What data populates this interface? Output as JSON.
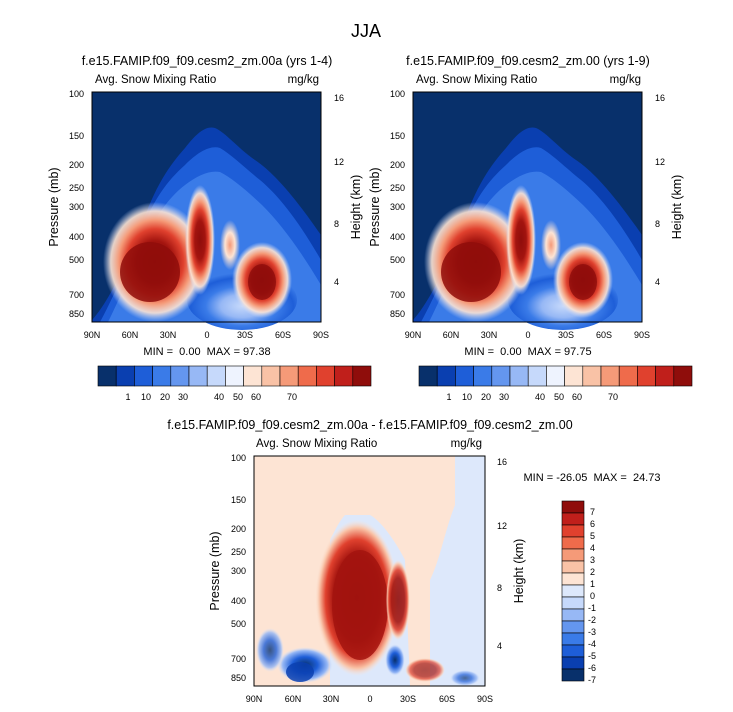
{
  "figure": {
    "title": "JJA"
  },
  "colors": {
    "field_scale": [
      "#08306b",
      "#0a3fb0",
      "#1e5ed8",
      "#3a7be8",
      "#6496ef",
      "#97b8f5",
      "#c6d9fb",
      "#eef3fe",
      "#fde4d4",
      "#f9c2a6",
      "#f59a78",
      "#ef6b4b",
      "#e0412e",
      "#c01f1b",
      "#8f0d0b"
    ],
    "diff_scale": [
      "#08306b",
      "#0a3fb0",
      "#1e5ed8",
      "#3a7be8",
      "#6496ef",
      "#97b8f5",
      "#c6d9fb",
      "#dde8fb",
      "#fde4d4",
      "#f9c2a6",
      "#f59a78",
      "#ef6b4b",
      "#e0412e",
      "#c01f1b",
      "#8f0d0b"
    ]
  },
  "chart_data": [
    {
      "type": "heatmap",
      "title": "f.e15.FAMIP.f09_f09.cesm2_zm.00a (yrs 1-4)",
      "subtitle_left": "Avg. Snow Mixing Ratio",
      "subtitle_right": "mg/kg",
      "xlabel": "",
      "ylabel": "Pressure (mb)",
      "ylabel_right": "Height (km)",
      "x_ticks": [
        "90N",
        "60N",
        "30N",
        "0",
        "30S",
        "60S",
        "90S"
      ],
      "y_ticks": [
        100,
        150,
        200,
        250,
        300,
        400,
        500,
        700,
        850
      ],
      "y_right_ticks": [
        16,
        12,
        8,
        4
      ],
      "y_scale": "log",
      "ylim": [
        900,
        100
      ],
      "xlim": [
        90,
        -90
      ],
      "stats": "MIN =  0.00  MAX = 97.38",
      "colorbar_ticks": [
        "1",
        "10",
        "20",
        "30",
        "40",
        "50",
        "60",
        "70"
      ],
      "features": [
        {
          "name": "northern mid-latitude maximum",
          "lat": 45,
          "pressure": 550,
          "value": 80
        },
        {
          "name": "southern mid-latitude maximum",
          "lat": -45,
          "pressure": 600,
          "value": 75
        },
        {
          "name": "tropical column",
          "lat": 12,
          "pressure": 350,
          "value": 45
        }
      ]
    },
    {
      "type": "heatmap",
      "title": "f.e15.FAMIP.f09_f09.cesm2_zm.00 (yrs 1-9)",
      "subtitle_left": "Avg. Snow Mixing Ratio",
      "subtitle_right": "mg/kg",
      "xlabel": "",
      "ylabel": "Pressure (mb)",
      "ylabel_right": "Height (km)",
      "x_ticks": [
        "90N",
        "60N",
        "30N",
        "0",
        "30S",
        "60S",
        "90S"
      ],
      "y_ticks": [
        100,
        150,
        200,
        250,
        300,
        400,
        500,
        700,
        850
      ],
      "y_right_ticks": [
        16,
        12,
        8,
        4
      ],
      "y_scale": "log",
      "ylim": [
        900,
        100
      ],
      "xlim": [
        90,
        -90
      ],
      "stats": "MIN =  0.00  MAX = 97.75",
      "colorbar_ticks": [
        "1",
        "10",
        "20",
        "30",
        "40",
        "50",
        "60",
        "70"
      ],
      "features": [
        {
          "name": "northern mid-latitude maximum",
          "lat": 45,
          "pressure": 550,
          "value": 80
        },
        {
          "name": "southern mid-latitude maximum",
          "lat": -45,
          "pressure": 600,
          "value": 76
        },
        {
          "name": "tropical column",
          "lat": 12,
          "pressure": 350,
          "value": 44
        }
      ]
    },
    {
      "type": "heatmap",
      "title": "f.e15.FAMIP.f09_f09.cesm2_zm.00a - f.e15.FAMIP.f09_f09.cesm2_zm.00",
      "subtitle_left": "Avg. Snow Mixing Ratio",
      "subtitle_right": "mg/kg",
      "xlabel": "",
      "ylabel": "Pressure (mb)",
      "ylabel_right": "Height (km)",
      "x_ticks": [
        "90N",
        "60N",
        "30N",
        "0",
        "30S",
        "60S",
        "90S"
      ],
      "y_ticks": [
        100,
        150,
        200,
        250,
        300,
        400,
        500,
        700,
        850
      ],
      "y_right_ticks": [
        16,
        12,
        8,
        4
      ],
      "y_scale": "log",
      "ylim": [
        900,
        100
      ],
      "xlim": [
        90,
        -90
      ],
      "stats": "MIN = -26.05  MAX =  24.73",
      "colorbar_ticks": [
        "7",
        "6",
        "5",
        "4",
        "3",
        "2",
        "1",
        "0",
        "-1",
        "-2",
        "-3",
        "-4",
        "-5",
        "-6",
        "-7"
      ],
      "features": [
        {
          "name": "tropical positive difference",
          "lat": 12,
          "pressure": 420,
          "value": 9
        },
        {
          "name": "northern low-level negative difference",
          "lat": 45,
          "pressure": 750,
          "value": -6
        },
        {
          "name": "southern low-level negative difference",
          "lat": -20,
          "pressure": 700,
          "value": -5
        }
      ]
    }
  ]
}
